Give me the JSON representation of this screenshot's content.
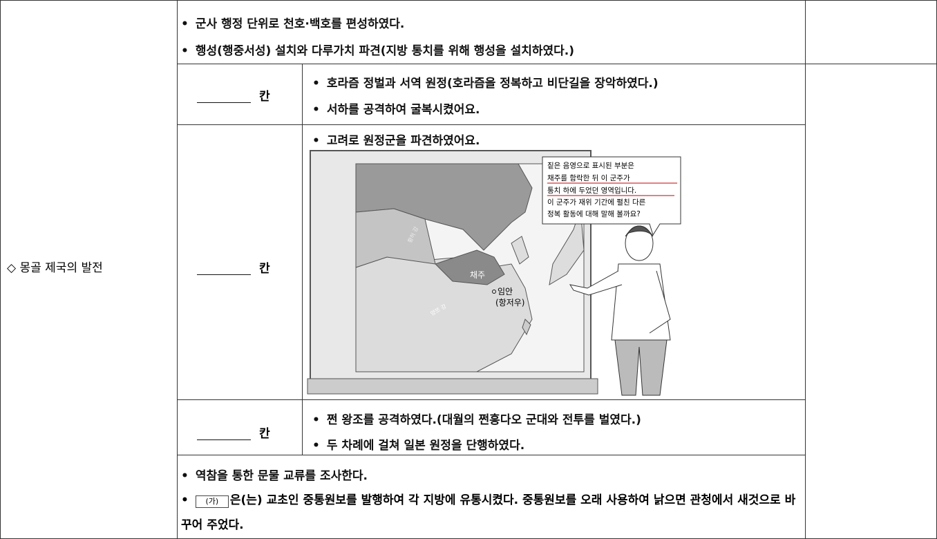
{
  "table": {
    "heading": "◇ 몽골 제국의 발전",
    "rows": [
      {
        "bullets": [
          "군사 행정 단위로 천호·백호를 편성하였다.",
          "행성(행중서성) 설치와 다루가치 파견(지방 통치를 위해 행성을 설치하였다.)"
        ]
      },
      {
        "label": "칸",
        "bullets": [
          "호라즘 정벌과 서역 원정(호라즘을 정복하고 비단길을 장악하였다.)",
          "서하를 공격하여 굴복시켰어요."
        ]
      },
      {
        "label": "칸",
        "bullets": [
          "고려로 원정군을 파견하였어요."
        ],
        "figure": {
          "bubble": [
            "짙은 음영으로 표시된 부분은",
            "채주를 함락한 뒤 이 군주가",
            "통치 하에 두었던 영역입니다.",
            "이 군주가 재위 기간에 펼친 다른",
            "정복 활동에 대해 말해 볼까요?"
          ],
          "places": [
            "채주",
            "임안",
            "(항저우)"
          ],
          "rivers": [
            "황허 강",
            "양쯔 강"
          ]
        }
      },
      {
        "label": "칸",
        "bullets": [
          "쩐 왕조를 공격하였다.(대월의 쩐흥다오 군대와 전투를 벌였다.)",
          "두 차례에 걸쳐 일본 원정을 단행하였다."
        ]
      },
      {
        "bullets": [
          "역참을 통한 문물 교류를 조사한다."
        ],
        "blank": "(가)",
        "after_blank": "은(는) 교초인 중통원보를 발행하여 각 지방에 유통시켰다. 중통원보를 오래 사용하여 낡으면 관청에서 새것으로 바꾸어 주었다."
      }
    ]
  }
}
